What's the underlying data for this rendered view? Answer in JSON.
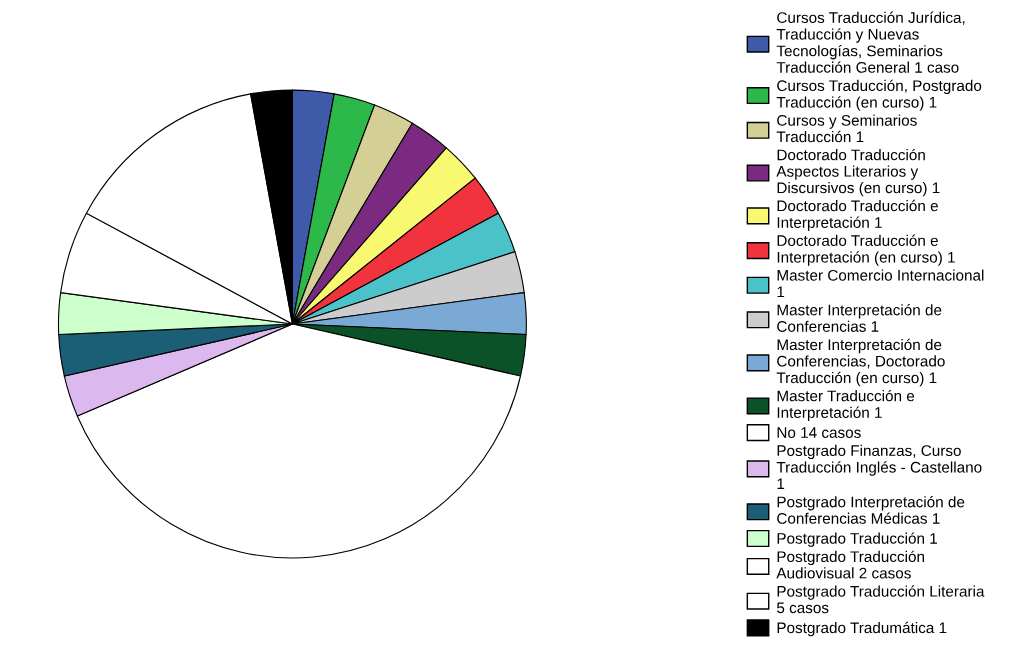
{
  "chart_data": {
    "type": "pie",
    "categories": [
      "Cursos Traducción Jurídica,\nTraducción y Nuevas\nTecnologías, Seminarios\nTraducción General 1 caso",
      "Cursos Traducción, Postgrado\nTraducción (en curso) 1",
      "Cursos y Seminarios\nTraducción 1",
      "Doctorado Traducción\nAspectos Literarios y\nDiscursivos (en curso) 1",
      "Doctorado Traducción e\nInterpretación 1",
      "Doctorado Traducción e\nInterpretación (en curso) 1",
      "Master Comercio Internacional\n1",
      "Master Interpretación de\nConferencias 1",
      "Master Interpretación de\nConferencias, Doctorado\nTraducción (en curso) 1",
      "Master Traducción e\nInterpretación 1",
      "No 14 casos",
      "Postgrado Finanzas, Curso\nTraducción Inglés - Castellano\n1",
      "Postgrado Interpretación de\nConferencias Médicas 1",
      "Postgrado Traducción 1",
      "Postgrado Traducción\nAudiovisual 2 casos",
      "Postgrado Traducción Literaria\n5 casos",
      "Postgrado Tradumática 1"
    ],
    "values": [
      1,
      1,
      1,
      1,
      1,
      1,
      1,
      1,
      1,
      1,
      14,
      1,
      1,
      1,
      2,
      5,
      1
    ],
    "colors": [
      "#3f5aa8",
      "#2db84a",
      "#d4cf94",
      "#7b2a82",
      "#f9f871",
      "#f0333c",
      "#4bc2c8",
      "#cccccc",
      "#7aa9d6",
      "#0b5228",
      "#ffffff",
      "#dbb8ee",
      "#1b5e75",
      "#ccffcc",
      "#ffffff",
      "#ffffff",
      "#000000"
    ],
    "legend": "right"
  }
}
